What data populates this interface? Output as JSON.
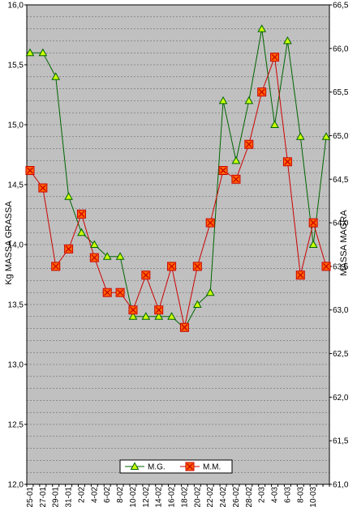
{
  "chart_data": {
    "type": "line",
    "categories": [
      "25-01",
      "27-01",
      "29-01",
      "31-01",
      "2-02",
      "4-02",
      "6-02",
      "8-02",
      "10-02",
      "12-02",
      "14-02",
      "16-02",
      "18-02",
      "20-02",
      "22-02",
      "24-02",
      "26-02",
      "28-02",
      "2-03",
      "4-03",
      "6-03",
      "8-03",
      "10-03"
    ],
    "x_index": [
      0,
      1,
      2,
      3,
      4,
      5,
      6,
      7,
      8,
      9,
      10,
      11,
      12,
      13,
      14,
      15,
      16,
      17,
      18,
      19,
      20,
      21,
      22,
      23,
      24,
      25,
      26,
      27,
      28,
      29,
      30,
      31,
      32,
      33,
      34,
      35,
      36,
      37,
      38,
      39,
      40,
      41,
      42,
      43,
      44,
      45,
      46
    ],
    "series": [
      {
        "name": "M.G.",
        "axis": "left",
        "color": "#006400",
        "marker": "triangle",
        "marker_fill": "#ccff00",
        "points": [
          [
            0,
            15.6
          ],
          [
            2,
            15.6
          ],
          [
            4,
            15.4
          ],
          [
            6,
            14.4
          ],
          [
            8,
            14.1
          ],
          [
            10,
            14.0
          ],
          [
            12,
            13.9
          ],
          [
            14,
            13.9
          ],
          [
            16,
            13.4
          ],
          [
            18,
            13.4
          ],
          [
            20,
            13.4
          ],
          [
            22,
            13.4
          ],
          [
            24,
            13.3
          ],
          [
            26,
            13.5
          ],
          [
            28,
            13.6
          ],
          [
            30,
            15.2
          ],
          [
            32,
            14.7
          ],
          [
            34,
            15.2
          ],
          [
            36,
            15.8
          ],
          [
            38,
            15.0
          ],
          [
            40,
            15.7
          ],
          [
            42,
            14.9
          ],
          [
            44,
            14.0
          ],
          [
            46,
            14.9
          ]
        ]
      },
      {
        "name": "M.M.",
        "axis": "right",
        "color": "#cc0000",
        "marker": "x-square",
        "marker_fill": "#ff6600",
        "points": [
          [
            0,
            64.6
          ],
          [
            2,
            64.4
          ],
          [
            4,
            63.5
          ],
          [
            6,
            63.7
          ],
          [
            8,
            64.1
          ],
          [
            10,
            63.6
          ],
          [
            12,
            63.2
          ],
          [
            14,
            63.2
          ],
          [
            16,
            63.0
          ],
          [
            18,
            63.4
          ],
          [
            20,
            63.0
          ],
          [
            22,
            63.5
          ],
          [
            24,
            62.8
          ],
          [
            26,
            63.5
          ],
          [
            28,
            64.0
          ],
          [
            30,
            64.6
          ],
          [
            32,
            64.5
          ],
          [
            34,
            64.9
          ],
          [
            36,
            65.5
          ],
          [
            38,
            65.9
          ],
          [
            40,
            64.7
          ],
          [
            42,
            63.4
          ],
          [
            44,
            64.0
          ],
          [
            46,
            63.5
          ]
        ]
      }
    ],
    "y_left": {
      "label": "Kg MASSA GRASSA",
      "ylim": [
        12.0,
        16.0
      ],
      "ticks": [
        "12,0",
        "12,5",
        "13,0",
        "13,5",
        "14,0",
        "14,5",
        "15,0",
        "15,5",
        "16,0"
      ]
    },
    "y_right": {
      "label": "MASSA MAGRA",
      "ylim": [
        61.0,
        66.5
      ],
      "ticks": [
        "61,0",
        "61,5",
        "62,0",
        "62,5",
        "63,0",
        "63,5",
        "64,0",
        "64,5",
        "65,0",
        "65,5",
        "66,0",
        "66,5"
      ]
    },
    "grid": true,
    "legend": {
      "placement": "bottom-center",
      "items": [
        "M.G.",
        "M.M."
      ]
    },
    "plot_background": "#c0c0c0"
  }
}
